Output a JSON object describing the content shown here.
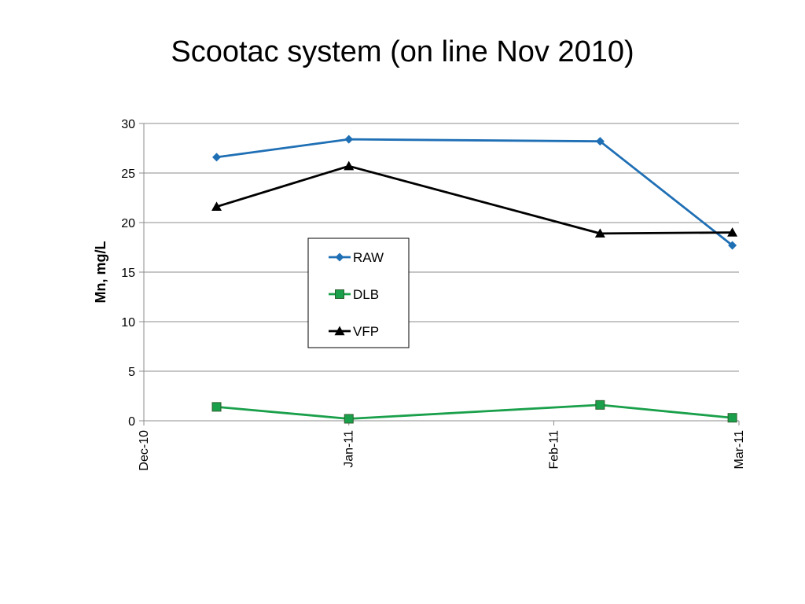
{
  "chart_data": {
    "type": "line",
    "title": "Scootac system (on line Nov 2010)",
    "xlabel": "",
    "ylabel": "Mn, mg/L",
    "x_axis": {
      "kind": "date",
      "range": [
        "2010-12-01",
        "2011-03-01"
      ],
      "ticks": [
        {
          "date": "2010-12-01",
          "label": "Dec-10"
        },
        {
          "date": "2011-01-01",
          "label": "Jan-11"
        },
        {
          "date": "2011-02-01",
          "label": "Feb-11"
        },
        {
          "date": "2011-03-01",
          "label": "Mar-11"
        }
      ]
    },
    "ylim": [
      0,
      30
    ],
    "yticks": [
      0,
      5,
      10,
      15,
      20,
      25,
      30
    ],
    "grid": "horizontal",
    "legend_position": "center-left",
    "series": [
      {
        "name": "RAW",
        "color": "#1f6fb5",
        "marker": "diamond",
        "points": [
          {
            "x": "2010-12-12",
            "y": 26.6
          },
          {
            "x": "2011-01-01",
            "y": 28.4
          },
          {
            "x": "2011-02-08",
            "y": 28.2
          },
          {
            "x": "2011-02-28",
            "y": 17.7
          }
        ]
      },
      {
        "name": "DLB",
        "color": "#1aa04b",
        "marker": "square",
        "points": [
          {
            "x": "2010-12-12",
            "y": 1.4
          },
          {
            "x": "2011-01-01",
            "y": 0.2
          },
          {
            "x": "2011-02-08",
            "y": 1.6
          },
          {
            "x": "2011-02-28",
            "y": 0.3
          }
        ]
      },
      {
        "name": "VFP",
        "color": "#000000",
        "marker": "triangle",
        "points": [
          {
            "x": "2010-12-12",
            "y": 21.6
          },
          {
            "x": "2011-01-01",
            "y": 25.7
          },
          {
            "x": "2011-02-08",
            "y": 18.9
          },
          {
            "x": "2011-02-28",
            "y": 19.0
          }
        ]
      }
    ]
  }
}
